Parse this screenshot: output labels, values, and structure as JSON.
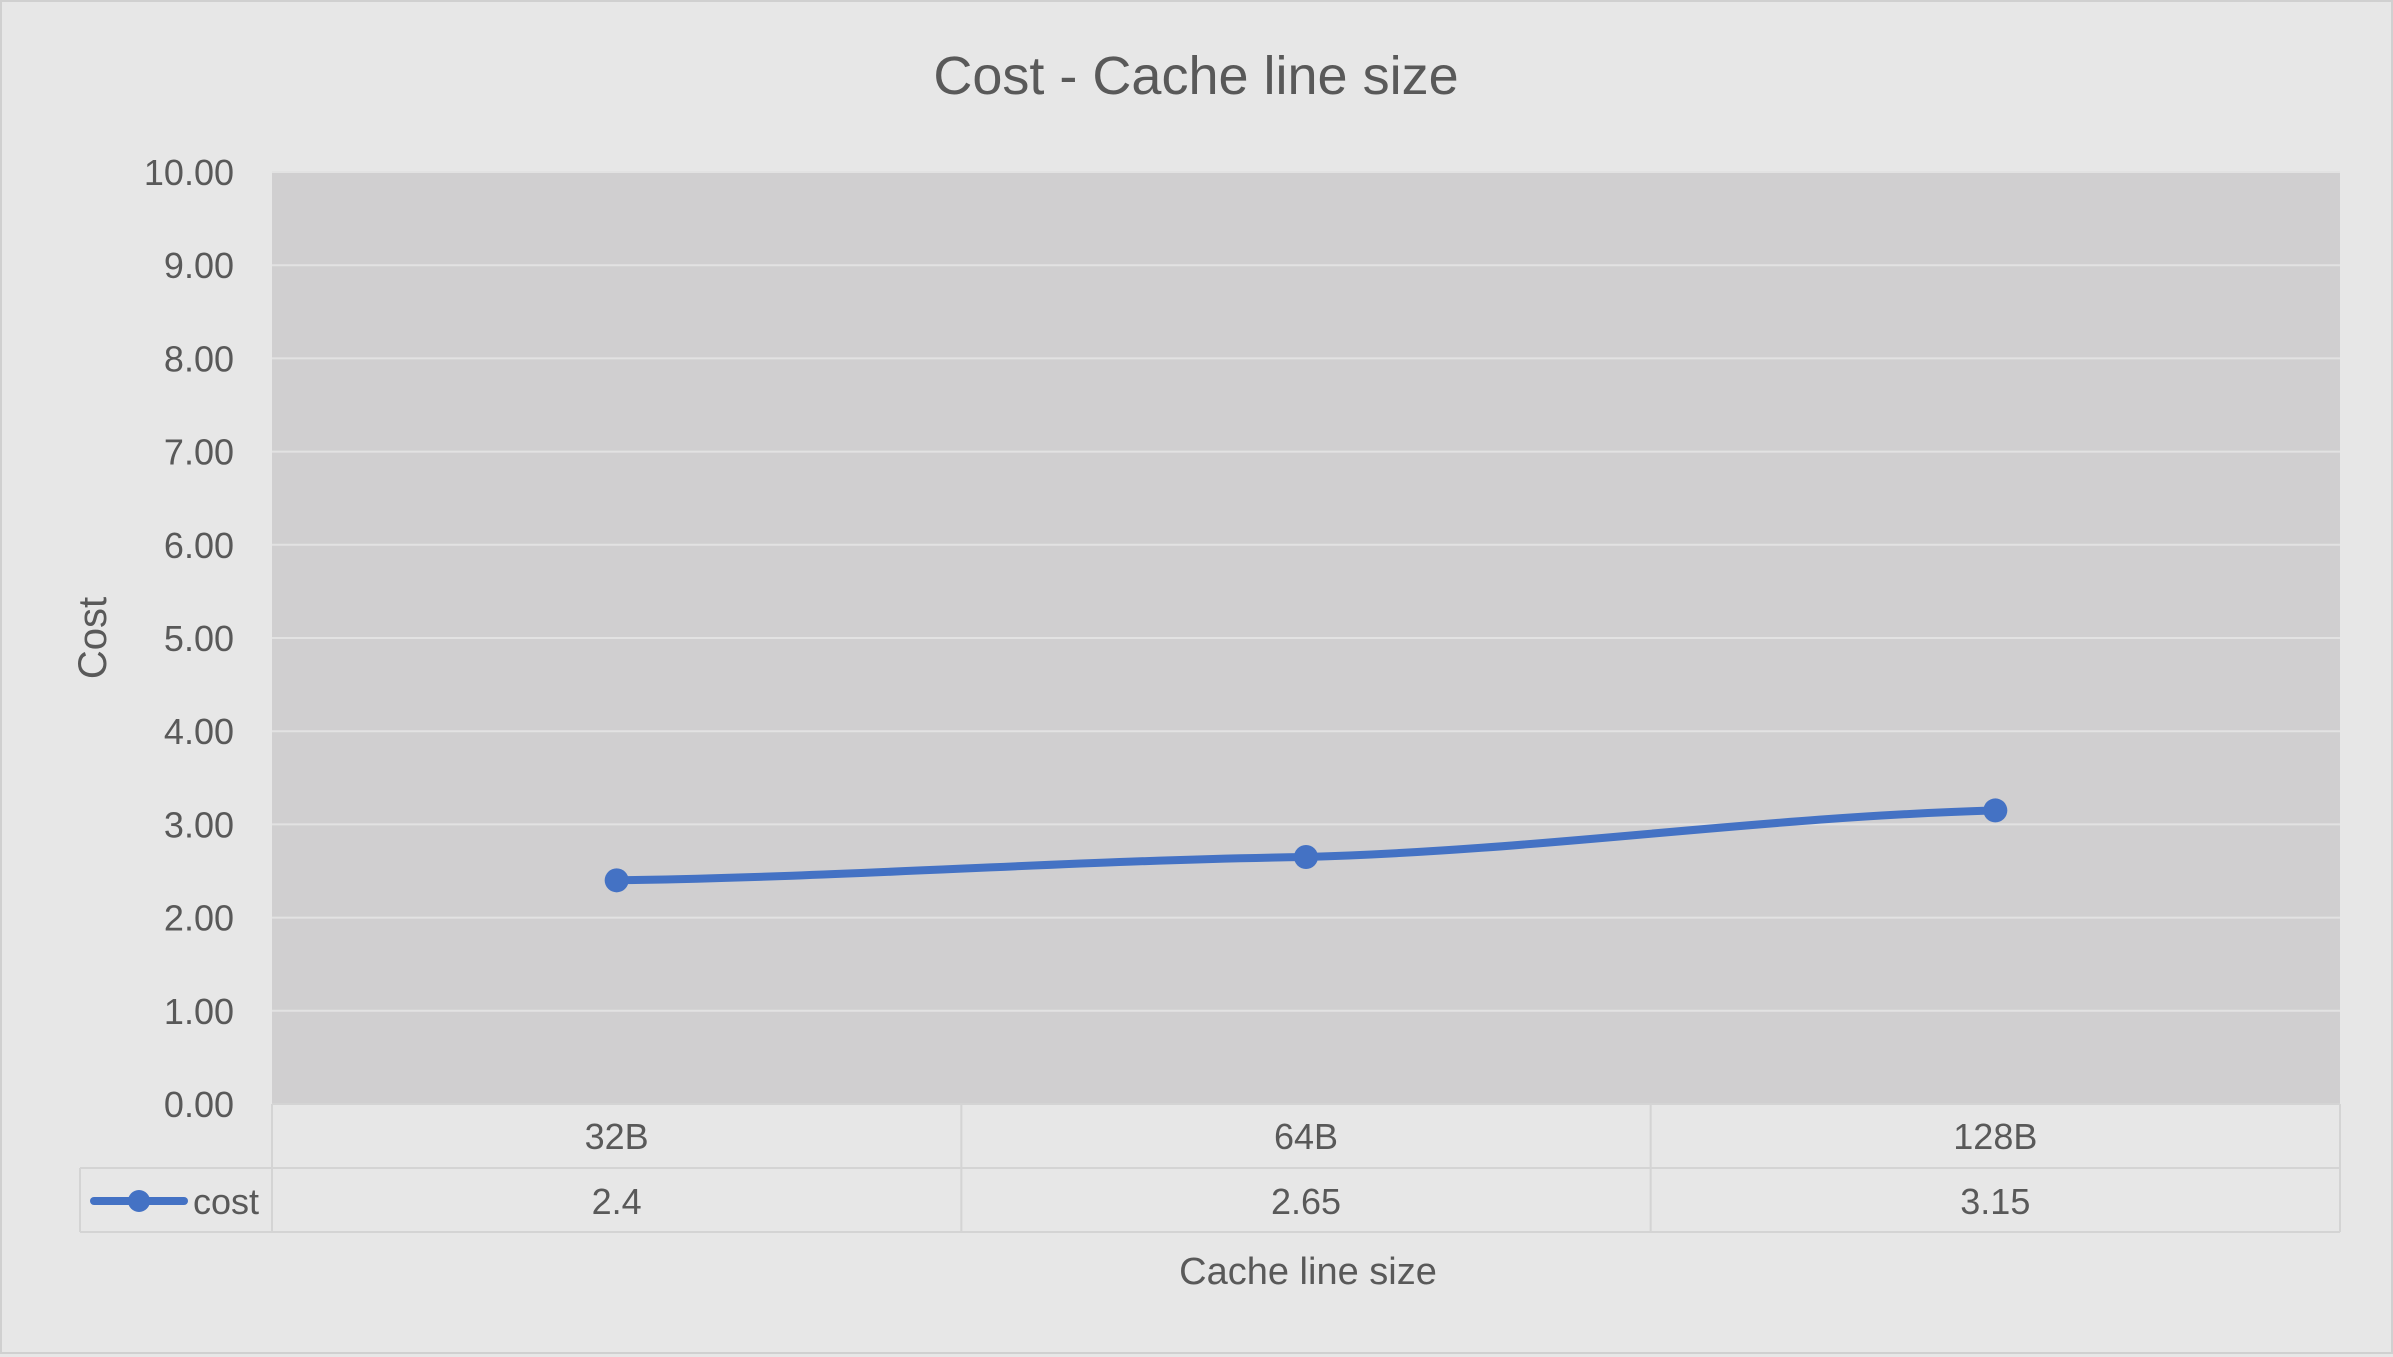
{
  "chart_data": {
    "type": "line",
    "title": "Cost - Cache line size",
    "xlabel": "Cache line size",
    "ylabel": "Cost",
    "categories": [
      "32B",
      "64B",
      "128B"
    ],
    "series": [
      {
        "name": "cost",
        "values": [
          2.4,
          2.65,
          3.15
        ],
        "value_labels": [
          "2.4",
          "2.65",
          "3.15"
        ]
      }
    ],
    "y_ticks": [
      "0.00",
      "1.00",
      "2.00",
      "3.00",
      "4.00",
      "5.00",
      "6.00",
      "7.00",
      "8.00",
      "9.00",
      "10.00"
    ],
    "ylim": [
      0,
      10
    ],
    "grid": true,
    "legend": "data-table-left",
    "data_table": true,
    "colors": {
      "series": "#4472c4",
      "plot_background": "#d0cfd0",
      "chart_background": "#e7e7e7",
      "gridline": "#e2e2e2",
      "table_border": "#d4d4d4",
      "text": "#595959"
    }
  }
}
